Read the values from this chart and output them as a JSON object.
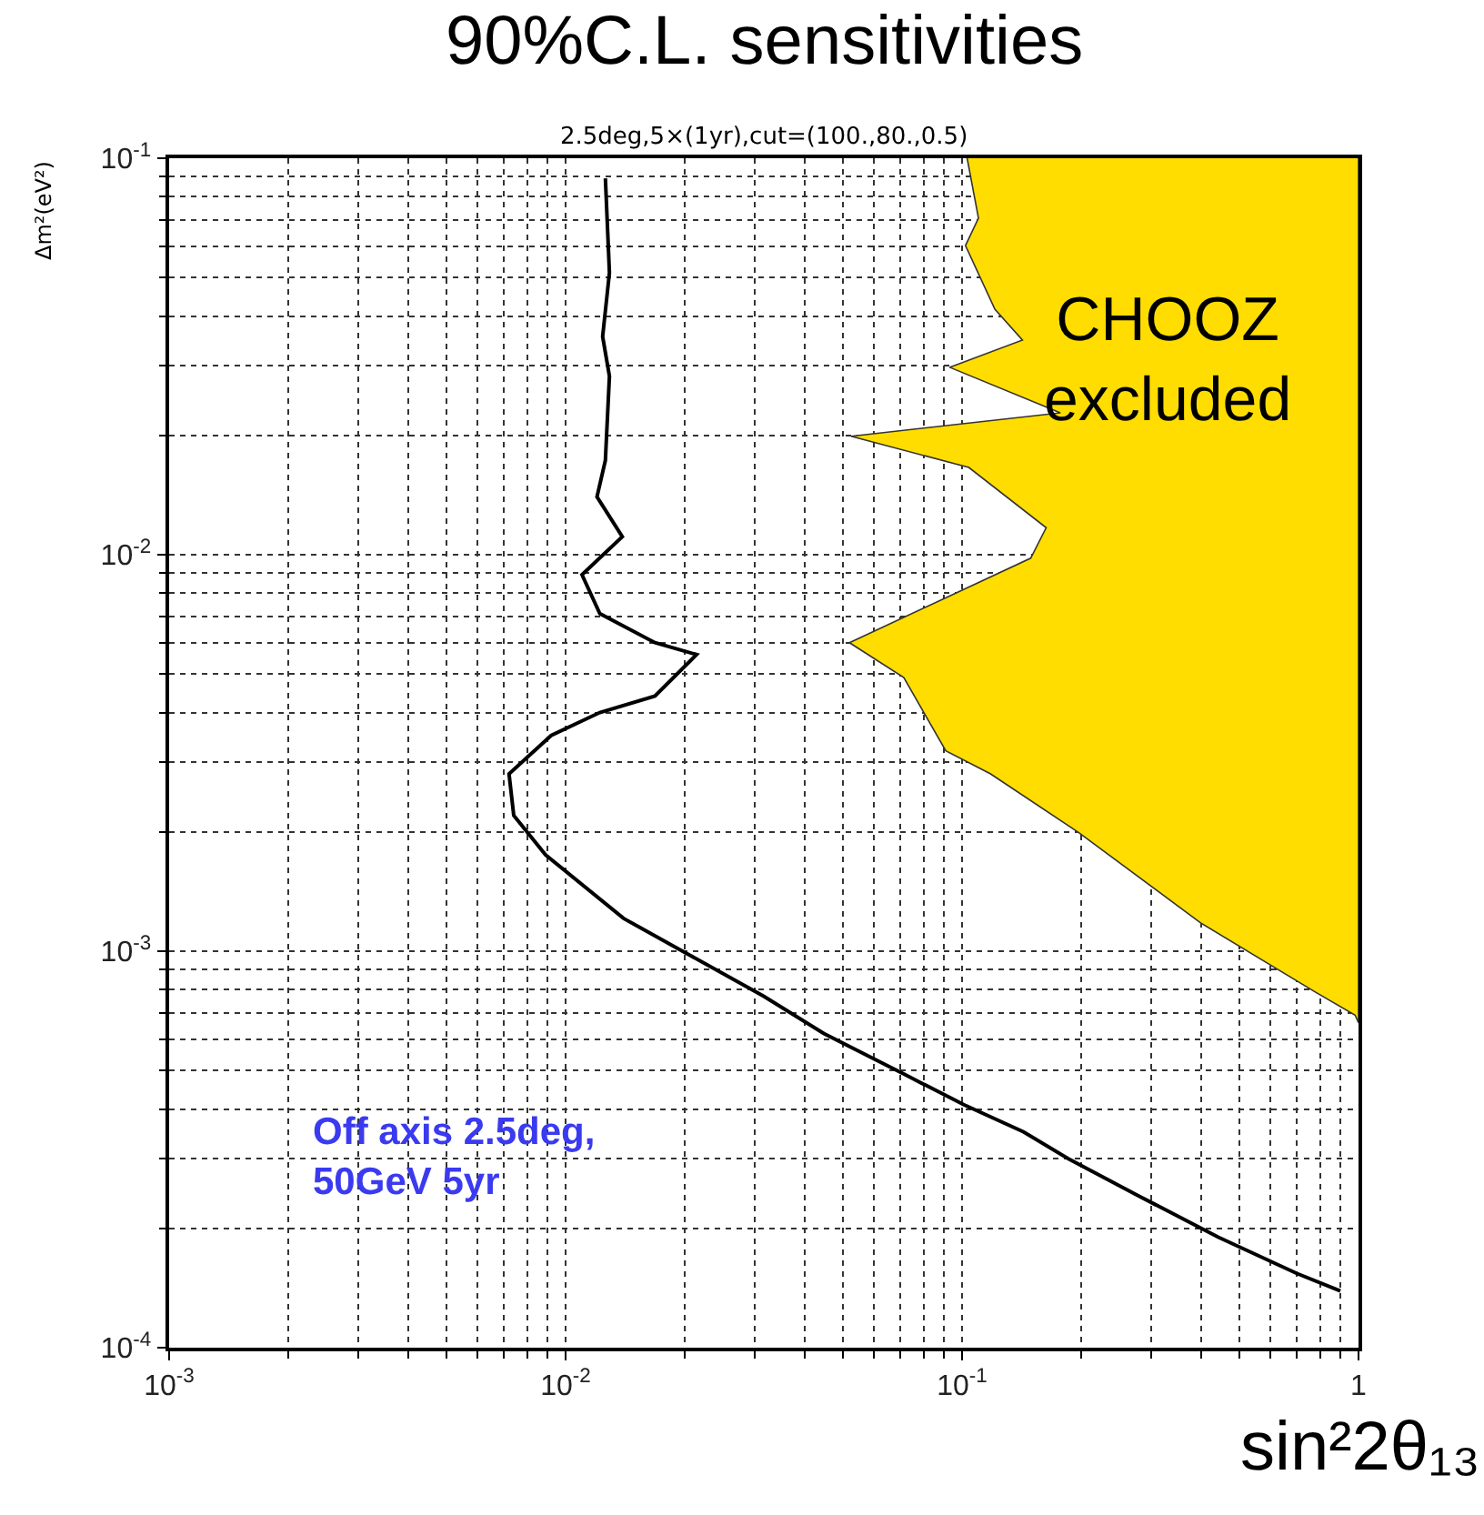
{
  "chart_data": {
    "type": "area",
    "title": "90%C.L. sensitivities",
    "subtitle": "2.5deg,5×(1yr),cut=(100.,80.,0.5)",
    "xlabel": "sin²2θ₁₃",
    "ylabel": "Δm²(eV²)",
    "log": "xy",
    "grid": true,
    "xlim": [
      0.001,
      1
    ],
    "ylim": [
      0.0001,
      0.1
    ],
    "xticks": [
      {
        "value": 0.001,
        "label": "10$^{-3}$"
      },
      {
        "value": 0.01,
        "label": "10$^{-2}$"
      },
      {
        "value": 0.1,
        "label": "10$^{-1}$"
      },
      1
    ],
    "yticks": [
      {
        "value": 0.0001,
        "label": "10$^{-4}$"
      },
      {
        "value": 0.001,
        "label": "10$^{-3}$"
      },
      {
        "value": 0.01,
        "label": "10$^{-2}$"
      },
      {
        "value": 0.1,
        "label": "10$^{-1}$"
      }
    ],
    "series": [
      {
        "color": "#ffdd00",
        "x": [
          0.103,
          0.11,
          0.102,
          0.121,
          0.142,
          0.093,
          0.177,
          0.0525,
          0.104,
          0.163,
          0.149,
          0.052,
          0.0713,
          0.091,
          0.118,
          0.197,
          0.399,
          0.776,
          0.98,
          1,
          1
        ],
        "values": [
          0.1,
          0.0706,
          0.0602,
          0.0416,
          0.0348,
          0.0297,
          0.0228,
          0.0199,
          0.0166,
          0.0117,
          0.0098,
          0.006,
          0.0049,
          0.0032,
          0.0028,
          0.00199,
          0.00118,
          0.00079,
          0.00069,
          0.00066,
          0.1
        ]
      },
      {
        "type": "line",
        "color": "#000000",
        "x": [
          0.0126,
          0.0129,
          0.0124,
          0.0129,
          0.0126,
          0.012,
          0.0139,
          0.011,
          0.0122,
          0.0168,
          0.0214,
          0.0168,
          0.0122,
          0.0092,
          0.0072,
          0.0074,
          0.0089,
          0.014,
          0.0201,
          0.0316,
          0.0448,
          0.0713,
          0.101,
          0.143,
          0.185,
          0.282,
          0.443,
          0.698,
          0.9
        ],
        "values": [
          0.089,
          0.0514,
          0.0355,
          0.0282,
          0.0173,
          0.014,
          0.0111,
          0.0089,
          0.0071,
          0.006,
          0.0056,
          0.0044,
          0.004,
          0.0035,
          0.0028,
          0.0022,
          0.00175,
          0.00121,
          0.00099,
          0.00077,
          0.00062,
          0.00049,
          0.00041,
          0.00035,
          0.0003,
          0.00024,
          0.00019,
          0.000154,
          0.000139
        ]
      }
    ],
    "annotations": [
      "CHOOZ\nexcluded",
      "Off axis 2.5deg,\n50GeV 5yr"
    ]
  }
}
